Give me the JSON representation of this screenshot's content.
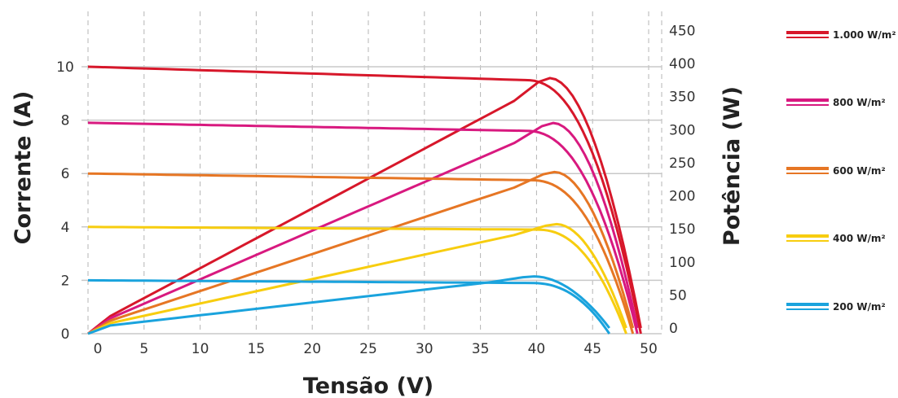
{
  "chart_data": {
    "type": "line",
    "xlabel": "Tensão (V)",
    "ylabel_left": "Corrente (A)",
    "ylabel_right": "Potência (W)",
    "x_ticks": [
      "0",
      "5",
      "10",
      "15",
      "20",
      "25",
      "30",
      "35",
      "40",
      "45",
      "50"
    ],
    "y_left_ticks": [
      "0",
      "2",
      "4",
      "6",
      "8",
      "10"
    ],
    "y_right_ticks": [
      "0",
      "50",
      "100",
      "150",
      "200",
      "250",
      "300",
      "350",
      "400",
      "450"
    ],
    "xlim": [
      -1,
      50
    ],
    "ylim_left": [
      0,
      11.5
    ],
    "ylim_right": [
      0,
      480
    ],
    "grid": {
      "vertical": "dashed",
      "horizontal": "solid-at-left-ticks"
    },
    "legend_position": "right",
    "series": [
      {
        "name": "1.000 W/m²",
        "color": "#d7172a",
        "isc": 10.0,
        "i_knee": 9.5,
        "v_knee": 39.0,
        "v_mpp": 41.2,
        "voc": 49.3,
        "p_mpp": 378
      },
      {
        "name": "800 W/m²",
        "color": "#d8197f",
        "isc": 7.9,
        "i_knee": 7.6,
        "v_knee": 39.0,
        "v_mpp": 41.5,
        "voc": 49.0,
        "p_mpp": 310
      },
      {
        "name": "600 W/m²",
        "color": "#e67624",
        "isc": 6.0,
        "i_knee": 5.75,
        "v_knee": 39.5,
        "v_mpp": 41.6,
        "voc": 48.6,
        "p_mpp": 236
      },
      {
        "name": "400 W/m²",
        "color": "#f7cd0f",
        "isc": 4.0,
        "i_knee": 3.9,
        "v_knee": 40.0,
        "v_mpp": 41.8,
        "voc": 48.0,
        "p_mpp": 157
      },
      {
        "name": "200 W/m²",
        "color": "#1aa3dd",
        "isc": 2.0,
        "i_knee": 1.9,
        "v_knee": 39.5,
        "v_mpp": 39.8,
        "voc": 46.5,
        "p_mpp": 78
      }
    ]
  }
}
